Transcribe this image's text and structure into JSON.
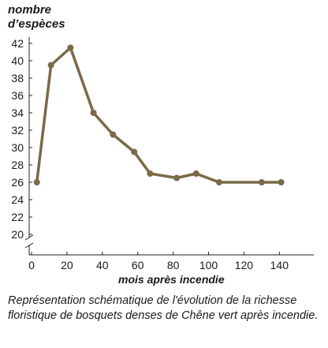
{
  "chart_data": {
    "type": "line",
    "ylabel": "nombre\nd’espèces",
    "xlabel": "mois après incendie",
    "caption": "Représentation schématique de l'évolution de la richesse floristique de bosquets denses de Chêne vert après incendie.",
    "x": [
      3,
      11,
      22,
      35,
      46,
      58,
      67,
      82,
      93,
      106,
      130,
      141
    ],
    "y": [
      26,
      39.5,
      41.5,
      34,
      31.5,
      29.5,
      27,
      26.5,
      27,
      26,
      26,
      26
    ],
    "xlim": [
      0,
      155
    ],
    "ylim": [
      20,
      42
    ],
    "xticks": [
      0,
      20,
      40,
      60,
      80,
      100,
      120,
      140
    ],
    "yticks": [
      20,
      22,
      24,
      26,
      28,
      30,
      32,
      34,
      36,
      38,
      40,
      42
    ],
    "line_color": "#7a6a48",
    "grid": false,
    "axis_break": true
  }
}
